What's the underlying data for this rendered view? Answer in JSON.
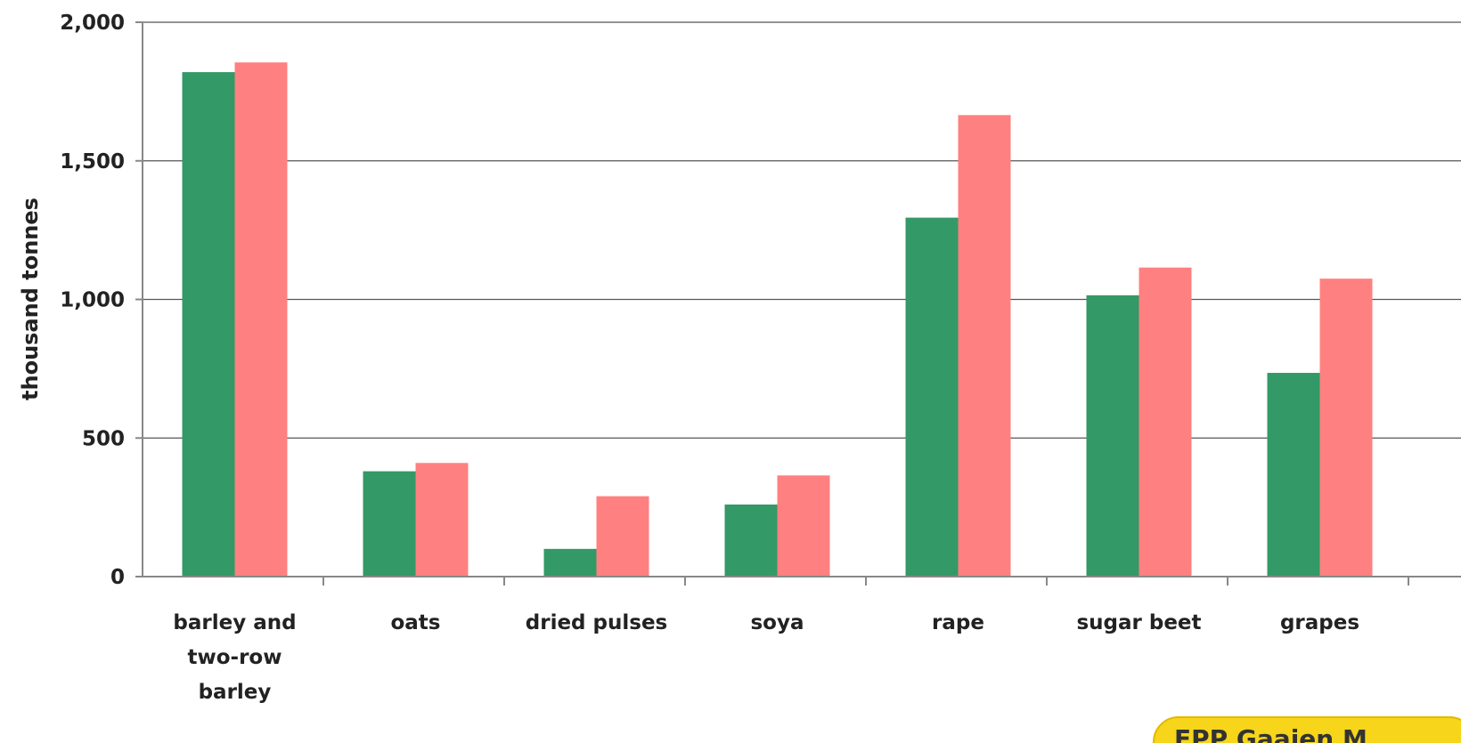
{
  "chart_data": {
    "type": "bar",
    "ylabel": "thousand tonnes",
    "ylim": [
      0,
      2000
    ],
    "yticks": [
      "0",
      "500",
      "1,000",
      "1,500",
      "2,000"
    ],
    "ytick_values": [
      0,
      500,
      1000,
      1500,
      2000
    ],
    "grid": true,
    "categories": [
      [
        "barley and",
        "two-row",
        "barley"
      ],
      [
        "oats"
      ],
      [
        "dried pulses"
      ],
      [
        "soya"
      ],
      [
        "rape"
      ],
      [
        "sugar beet"
      ],
      [
        "grapes"
      ]
    ],
    "series": [
      {
        "color": "#339966",
        "values": [
          1820,
          380,
          100,
          260,
          1295,
          1015,
          735
        ]
      },
      {
        "color": "#ff8080",
        "values": [
          1855,
          410,
          290,
          365,
          1665,
          1115,
          1075
        ]
      }
    ]
  },
  "badge": {
    "text": "FPP Gaaien M"
  }
}
